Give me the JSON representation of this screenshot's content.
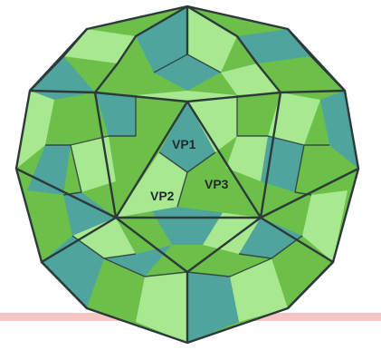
{
  "diagram": {
    "labels": {
      "vp1": "VP1",
      "vp2": "VP2",
      "vp3": "VP3"
    },
    "colors": {
      "vp1": "#4fa59e",
      "vp2": "#a8e890",
      "vp3": "#6cc04a",
      "outline": "#2c3a3a",
      "baseline": "#f6c6c6"
    }
  }
}
